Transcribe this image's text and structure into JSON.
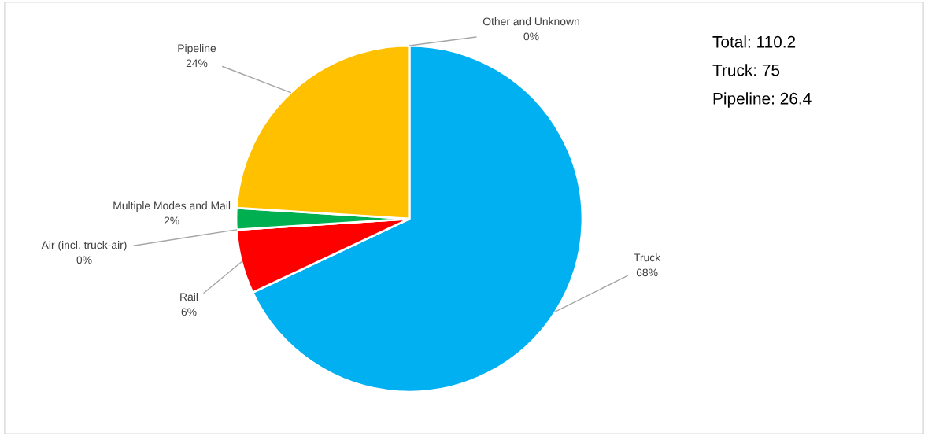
{
  "chart_data": {
    "type": "pie",
    "categories": [
      "Truck",
      "Rail",
      "Air (incl. truck-air)",
      "Multiple Modes and Mail",
      "Pipeline",
      "Other and Unknown"
    ],
    "values": [
      68,
      6,
      0,
      2,
      24,
      0
    ],
    "value_labels": [
      "68%",
      "6%",
      "0%",
      "2%",
      "24%",
      "0%"
    ],
    "colors": [
      "#00b0f0",
      "#ff0000",
      "#7030a0",
      "#00b050",
      "#ffc000",
      "#a5a5a5"
    ],
    "annotations": [
      "Total: 110.2",
      "Truck: 75",
      "Pipeline: 26.4"
    ],
    "legend": false
  }
}
